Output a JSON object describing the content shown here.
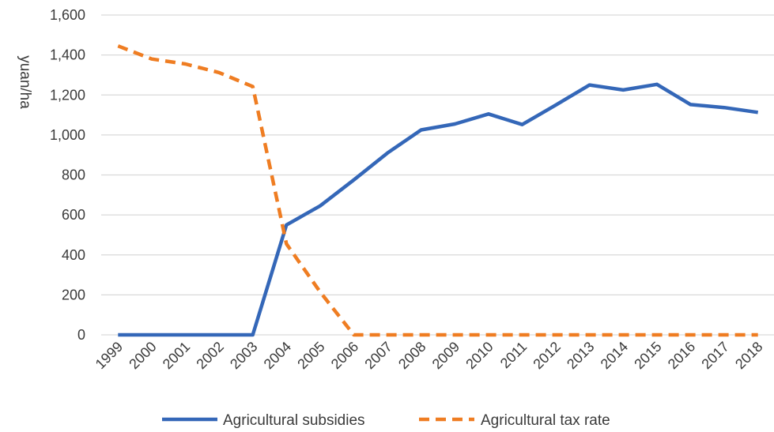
{
  "chart_data": {
    "type": "line",
    "title": "",
    "xlabel": "",
    "ylabel": "yuan/ha",
    "ylim": [
      0,
      1600
    ],
    "yticks": [
      0,
      200,
      400,
      600,
      800,
      1000,
      1200,
      1400,
      1600
    ],
    "ytick_labels": [
      "0",
      "200",
      "400",
      "600",
      "800",
      "1,000",
      "1,200",
      "1,400",
      "1,600"
    ],
    "grid": "horizontal",
    "legend_position": "bottom",
    "categories": [
      "1999",
      "2000",
      "2001",
      "2002",
      "2003",
      "2004",
      "2005",
      "2006",
      "2007",
      "2008",
      "2009",
      "2010",
      "2011",
      "2012",
      "2013",
      "2014",
      "2015",
      "2016",
      "2017",
      "2018"
    ],
    "series": [
      {
        "name": "Agricultural subsidies",
        "color": "#3467b8",
        "style": "solid",
        "values": [
          0,
          0,
          0,
          0,
          0,
          550,
          645,
          775,
          910,
          1025,
          1055,
          1105,
          1052,
          1150,
          1250,
          1225,
          1253,
          1152,
          1137,
          1113
        ]
      },
      {
        "name": "Agricultural tax rate",
        "color": "#ef7d22",
        "style": "dashed",
        "values": [
          1445,
          1380,
          1355,
          1312,
          1242,
          455,
          215,
          0,
          0,
          0,
          0,
          0,
          0,
          0,
          0,
          0,
          0,
          0,
          0,
          0
        ]
      }
    ]
  }
}
